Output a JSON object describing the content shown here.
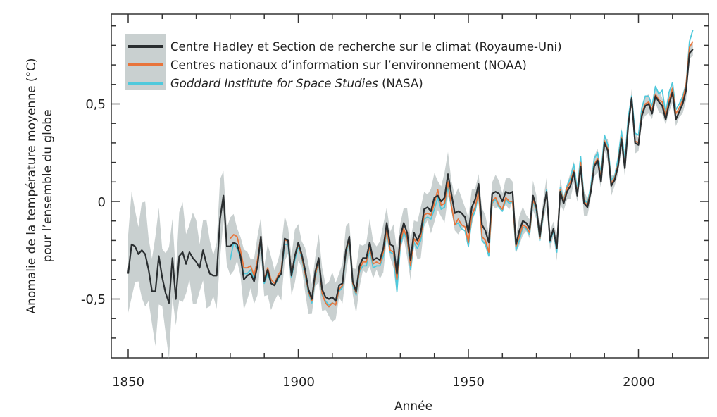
{
  "chart_data": {
    "type": "line",
    "title": "",
    "xlabel": "Année",
    "ylabel_lines": [
      "Anomalie de la température moyenne (°C)",
      "pour l’ensemble du globe"
    ],
    "xlim": [
      1845,
      2018
    ],
    "ylim": [
      -0.8,
      0.95
    ],
    "x_ticks": [
      1850,
      1900,
      1950,
      2000
    ],
    "x_tick_labels": [
      "1850",
      "1900",
      "1950",
      "2000"
    ],
    "y_ticks": [
      -0.5,
      0,
      0.5
    ],
    "y_tick_labels": [
      "-0,5",
      "0",
      "0,5"
    ],
    "grid": false,
    "legend_position": "top-left",
    "legend": [
      {
        "label": "Centre Hadley et Section de recherche sur le climat (Royaume-Uni)",
        "italic": "",
        "rest": ""
      },
      {
        "label": "Centres nationaux d’information sur l’environnement (NOAA)",
        "italic": "",
        "rest": ""
      },
      {
        "label": "",
        "italic": "Goddard Institute for Space Studies",
        "rest": " (NASA)"
      }
    ],
    "band": {
      "color": "#c9d0d0",
      "years": [
        1850,
        1860,
        1870,
        1878,
        1880,
        1900,
        1920,
        1945,
        1950,
        1980,
        2000,
        2016
      ],
      "halfwidth": [
        0.2,
        0.22,
        0.18,
        0.15,
        0.12,
        0.1,
        0.09,
        0.1,
        0.07,
        0.05,
        0.04,
        0.04
      ]
    },
    "series": [
      {
        "name": "Hadley/CRU",
        "color": "#2a2e30",
        "start": 1850,
        "values": [
          -0.37,
          -0.22,
          -0.23,
          -0.27,
          -0.25,
          -0.27,
          -0.35,
          -0.46,
          -0.46,
          -0.28,
          -0.39,
          -0.47,
          -0.52,
          -0.29,
          -0.5,
          -0.28,
          -0.26,
          -0.32,
          -0.26,
          -0.29,
          -0.31,
          -0.34,
          -0.25,
          -0.32,
          -0.37,
          -0.38,
          -0.38,
          -0.09,
          0.03,
          -0.23,
          -0.23,
          -0.21,
          -0.22,
          -0.28,
          -0.4,
          -0.38,
          -0.37,
          -0.41,
          -0.33,
          -0.18,
          -0.41,
          -0.35,
          -0.42,
          -0.43,
          -0.39,
          -0.37,
          -0.19,
          -0.2,
          -0.38,
          -0.28,
          -0.21,
          -0.27,
          -0.35,
          -0.45,
          -0.5,
          -0.36,
          -0.29,
          -0.45,
          -0.49,
          -0.5,
          -0.49,
          -0.51,
          -0.43,
          -0.42,
          -0.25,
          -0.18,
          -0.41,
          -0.46,
          -0.33,
          -0.29,
          -0.29,
          -0.21,
          -0.3,
          -0.29,
          -0.3,
          -0.24,
          -0.11,
          -0.22,
          -0.23,
          -0.37,
          -0.18,
          -0.11,
          -0.16,
          -0.3,
          -0.16,
          -0.2,
          -0.16,
          -0.04,
          -0.03,
          -0.05,
          0.02,
          0.03,
          0.0,
          0.02,
          0.14,
          0.04,
          -0.06,
          -0.05,
          -0.06,
          -0.08,
          -0.16,
          -0.03,
          0.01,
          0.09,
          -0.12,
          -0.15,
          -0.21,
          0.04,
          0.05,
          0.04,
          0.0,
          0.05,
          0.04,
          0.05,
          -0.22,
          -0.15,
          -0.1,
          -0.11,
          -0.14,
          0.03,
          -0.03,
          -0.18,
          -0.05,
          0.05,
          -0.2,
          -0.14,
          -0.24,
          0.05,
          -0.01,
          0.05,
          0.08,
          0.15,
          0.03,
          0.18,
          -0.01,
          -0.03,
          0.05,
          0.18,
          0.21,
          0.1,
          0.3,
          0.26,
          0.08,
          0.11,
          0.18,
          0.32,
          0.17,
          0.39,
          0.53,
          0.3,
          0.29,
          0.44,
          0.49,
          0.5,
          0.45,
          0.54,
          0.51,
          0.49,
          0.42,
          0.5,
          0.56,
          0.42,
          0.46,
          0.5,
          0.57,
          0.76,
          0.78
        ]
      },
      {
        "name": "NOAA",
        "color": "#e8743b",
        "start": 1880,
        "values": [
          -0.19,
          -0.17,
          -0.18,
          -0.25,
          -0.34,
          -0.34,
          -0.33,
          -0.38,
          -0.3,
          -0.18,
          -0.4,
          -0.34,
          -0.4,
          -0.42,
          -0.38,
          -0.35,
          -0.2,
          -0.2,
          -0.37,
          -0.28,
          -0.22,
          -0.28,
          -0.37,
          -0.46,
          -0.51,
          -0.38,
          -0.3,
          -0.47,
          -0.52,
          -0.54,
          -0.52,
          -0.53,
          -0.45,
          -0.43,
          -0.26,
          -0.19,
          -0.42,
          -0.47,
          -0.35,
          -0.31,
          -0.31,
          -0.23,
          -0.32,
          -0.31,
          -0.32,
          -0.26,
          -0.14,
          -0.25,
          -0.26,
          -0.4,
          -0.21,
          -0.14,
          -0.19,
          -0.33,
          -0.19,
          -0.22,
          -0.18,
          -0.07,
          -0.06,
          -0.07,
          -0.01,
          0.06,
          -0.02,
          -0.01,
          0.1,
          -0.02,
          -0.12,
          -0.09,
          -0.12,
          -0.13,
          -0.21,
          -0.07,
          -0.03,
          0.05,
          -0.18,
          -0.2,
          -0.26,
          0.0,
          0.02,
          -0.02,
          -0.04,
          0.02,
          0.0,
          0.0,
          -0.23,
          -0.18,
          -0.12,
          -0.13,
          -0.16,
          0.01,
          -0.04,
          -0.19,
          -0.06,
          0.05,
          -0.2,
          -0.14,
          -0.24,
          0.06,
          0.0,
          0.07,
          0.1,
          0.16,
          0.04,
          0.2,
          0.0,
          -0.02,
          0.06,
          0.19,
          0.22,
          0.12,
          0.31,
          0.27,
          0.09,
          0.12,
          0.19,
          0.33,
          0.18,
          0.4,
          0.52,
          0.31,
          0.3,
          0.45,
          0.5,
          0.51,
          0.47,
          0.55,
          0.52,
          0.51,
          0.44,
          0.52,
          0.58,
          0.45,
          0.48,
          0.52,
          0.6,
          0.79,
          0.82
        ]
      },
      {
        "name": "NASA",
        "color": "#4fc9dc",
        "start": 1880,
        "values": [
          -0.3,
          -0.21,
          -0.24,
          -0.29,
          -0.37,
          -0.37,
          -0.35,
          -0.4,
          -0.32,
          -0.2,
          -0.42,
          -0.37,
          -0.42,
          -0.43,
          -0.4,
          -0.37,
          -0.22,
          -0.22,
          -0.39,
          -0.3,
          -0.23,
          -0.29,
          -0.38,
          -0.47,
          -0.52,
          -0.39,
          -0.31,
          -0.48,
          -0.51,
          -0.53,
          -0.52,
          -0.53,
          -0.46,
          -0.44,
          -0.27,
          -0.2,
          -0.43,
          -0.48,
          -0.36,
          -0.33,
          -0.33,
          -0.25,
          -0.34,
          -0.33,
          -0.33,
          -0.28,
          -0.15,
          -0.26,
          -0.27,
          -0.46,
          -0.23,
          -0.16,
          -0.2,
          -0.35,
          -0.21,
          -0.24,
          -0.2,
          -0.09,
          -0.08,
          -0.09,
          -0.04,
          0.02,
          -0.04,
          -0.03,
          0.08,
          -0.03,
          -0.12,
          -0.11,
          -0.14,
          -0.15,
          -0.23,
          -0.09,
          -0.05,
          0.04,
          -0.2,
          -0.22,
          -0.28,
          -0.01,
          0.01,
          -0.03,
          -0.05,
          0.01,
          -0.01,
          0.0,
          -0.25,
          -0.2,
          -0.13,
          -0.14,
          -0.17,
          0.0,
          -0.05,
          -0.2,
          -0.07,
          0.06,
          -0.21,
          -0.15,
          -0.26,
          0.07,
          0.01,
          0.08,
          0.12,
          0.19,
          0.06,
          0.23,
          0.01,
          -0.01,
          0.08,
          0.22,
          0.25,
          0.14,
          0.34,
          0.29,
          0.11,
          0.13,
          0.22,
          0.36,
          0.21,
          0.43,
          0.54,
          0.35,
          0.34,
          0.48,
          0.54,
          0.54,
          0.49,
          0.59,
          0.55,
          0.57,
          0.45,
          0.56,
          0.61,
          0.47,
          0.5,
          0.54,
          0.6,
          0.82,
          0.88
        ]
      }
    ]
  }
}
